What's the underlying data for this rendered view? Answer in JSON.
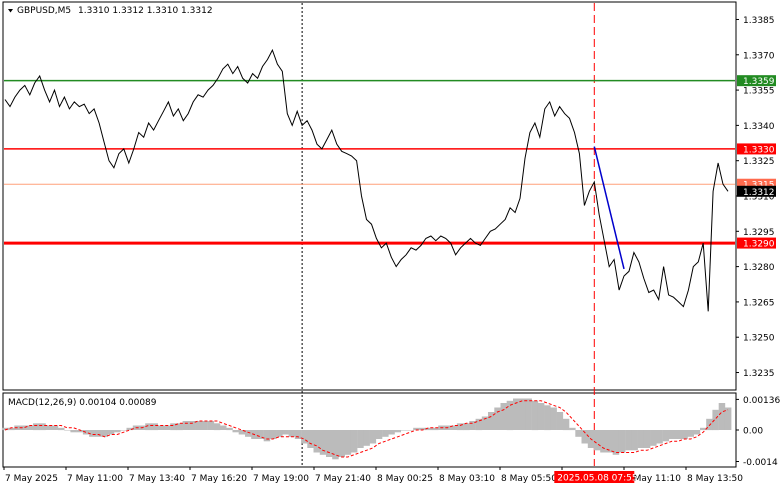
{
  "header": {
    "symbol": "GBPUSD,M5",
    "ohlc": "1.3310 1.3312 1.3310 1.3312"
  },
  "macd": {
    "label": "MACD(12,26,9) 0.00104 0.00089"
  },
  "colors": {
    "price_line": "#000000",
    "resistance": "#228B22",
    "levels": "#FF0000",
    "minor_level": "#FFA07A",
    "trend": "#0000CC",
    "histogram": "#BBBBBB",
    "signal": "#FF0000",
    "current_label_bg": "#000000"
  },
  "chart_data": [
    {
      "type": "line",
      "title": "GBPUSD,M5",
      "ylim": [
        1.3228,
        1.3392
      ],
      "y_ticks": [
        "1.3385",
        "1.3370",
        "1.3355",
        "1.3340",
        "1.3325",
        "1.3310",
        "1.3295",
        "1.3280",
        "1.3265",
        "1.3250",
        "1.3235"
      ],
      "x_ticks": [
        "7 May 2025",
        "7 May 11:00",
        "7 May 13:40",
        "7 May 16:20",
        "7 May 19:00",
        "7 May 21:40",
        "8 May 00:25",
        "8 May 03:10",
        "8 May 05:50",
        "8 May 08:30",
        "8 May 11:10",
        "8 May 13:50"
      ],
      "x_highlight": "2025.05.08 07:55",
      "series": [
        {
          "values": [
            1.3351,
            1.3348,
            1.3352,
            1.3355,
            1.3357,
            1.3353,
            1.3358,
            1.3361,
            1.3355,
            1.335,
            1.3355,
            1.3348,
            1.3352,
            1.3347,
            1.335,
            1.3348,
            1.3349,
            1.3345,
            1.3347,
            1.3341,
            1.3333,
            1.3325,
            1.3322,
            1.3328,
            1.333,
            1.3324,
            1.333,
            1.3337,
            1.3335,
            1.3341,
            1.3338,
            1.3342,
            1.3346,
            1.335,
            1.3344,
            1.3347,
            1.3342,
            1.3345,
            1.335,
            1.3353,
            1.3352,
            1.3355,
            1.3357,
            1.336,
            1.3364,
            1.3366,
            1.3362,
            1.3365,
            1.336,
            1.3358,
            1.3362,
            1.336,
            1.3365,
            1.3368,
            1.3372,
            1.3366,
            1.3363,
            1.3345,
            1.334,
            1.3346,
            1.334,
            1.3342,
            1.3338,
            1.3332,
            1.333,
            1.3334,
            1.3338,
            1.3332,
            1.3329,
            1.3328,
            1.3327,
            1.3325,
            1.331,
            1.33,
            1.3298,
            1.3292,
            1.3288,
            1.329,
            1.3284,
            1.328,
            1.3283,
            1.3285,
            1.3288,
            1.3287,
            1.3289,
            1.3292,
            1.3293,
            1.3291,
            1.3293,
            1.3292,
            1.329,
            1.3285,
            1.3288,
            1.329,
            1.3292,
            1.329,
            1.3289,
            1.3292,
            1.3295,
            1.3296,
            1.3298,
            1.33,
            1.3305,
            1.3303,
            1.3309,
            1.3326,
            1.3337,
            1.3341,
            1.3335,
            1.3347,
            1.335,
            1.3344,
            1.3348,
            1.3345,
            1.3343,
            1.3337,
            1.3328,
            1.3306,
            1.3312,
            1.3316,
            1.3302,
            1.3291,
            1.328,
            1.3283,
            1.327,
            1.3276,
            1.3278,
            1.3286,
            1.3282,
            1.3275,
            1.3269,
            1.327,
            1.3266,
            1.328,
            1.3268,
            1.3267,
            1.3265,
            1.3263,
            1.327,
            1.328,
            1.3282,
            1.329,
            1.3261,
            1.3312,
            1.3324,
            1.3315,
            1.3312
          ]
        }
      ],
      "levels": [
        {
          "label": "1.3359",
          "value": 1.3359
        },
        {
          "label": "1.3330",
          "value": 1.333
        },
        {
          "label": "1.3315",
          "value": 1.3315
        },
        {
          "label": "1.3290",
          "value": 1.329
        }
      ],
      "current_price": "1.3312",
      "trend_line": {
        "from": [
          119,
          1.3331
        ],
        "to": [
          125,
          1.3279
        ]
      },
      "vertical_markers": [
        60,
        119
      ]
    },
    {
      "type": "bar",
      "title": "MACD(12,26,9) 0.00104 0.00089",
      "ylim": [
        -0.0016,
        0.0016
      ],
      "y_ticks": [
        "0.00136",
        "0.00",
        "-0.0014"
      ],
      "series": [
        {
          "name": "MACD",
          "values": [
            0.0001,
            0.0001,
            0.0002,
            0.0002,
            0.0002,
            0.0003,
            0.0003,
            0.0002,
            0.0002,
            0.0001,
            0.0,
            -0.0001,
            -0.0001,
            -0.0002,
            -0.0003,
            -0.0003,
            -0.0003,
            -0.0002,
            -0.0001,
            0.0,
            0.0001,
            0.0002,
            0.0002,
            0.0003,
            0.0003,
            0.0002,
            0.0002,
            0.0003,
            0.0003,
            0.0004,
            0.0004,
            0.0004,
            0.0004,
            0.0004,
            0.0003,
            0.0002,
            0.0001,
            -0.0001,
            -0.0002,
            -0.0003,
            -0.0004,
            -0.0004,
            -0.0005,
            -0.0004,
            -0.0003,
            -0.0002,
            -0.0003,
            -0.0004,
            -0.0006,
            -0.0008,
            -0.001,
            -0.0011,
            -0.0012,
            -0.0013,
            -0.0012,
            -0.0011,
            -0.001,
            -0.0008,
            -0.0007,
            -0.0006,
            -0.0004,
            -0.0003,
            -0.0002,
            -0.0001,
            0.0,
            0.0,
            0.0001,
            0.0001,
            0.0001,
            0.0001,
            0.0002,
            0.0002,
            0.0002,
            0.0003,
            0.0003,
            0.0004,
            0.0005,
            0.0006,
            0.0008,
            0.001,
            0.0012,
            0.0013,
            0.0014,
            0.0014,
            0.0014,
            0.0013,
            0.0012,
            0.0011,
            0.001,
            0.0008,
            0.0005,
            0.0001,
            -0.0003,
            -0.0006,
            -0.0008,
            -0.0009,
            -0.001,
            -0.001,
            -0.0011,
            -0.001,
            -0.0009,
            -0.0009,
            -0.0008,
            -0.0008,
            -0.0007,
            -0.0006,
            -0.0005,
            -0.0004,
            -0.0004,
            -0.0004,
            -0.0003,
            -0.0002,
            0.0001,
            0.0005,
            0.0009,
            0.0012,
            0.001
          ]
        },
        {
          "name": "Signal",
          "values": [
            0.0,
            0.0001,
            0.0001,
            0.0001,
            0.0002,
            0.0002,
            0.0002,
            0.0002,
            0.0002,
            0.0002,
            0.0001,
            0.0001,
            0.0,
            -0.0001,
            -0.0002,
            -0.0002,
            -0.0003,
            -0.0002,
            -0.0002,
            -0.0001,
            0.0,
            0.0001,
            0.0001,
            0.0002,
            0.0002,
            0.0002,
            0.0002,
            0.0002,
            0.0003,
            0.0003,
            0.0003,
            0.0004,
            0.0004,
            0.0004,
            0.0004,
            0.0003,
            0.0002,
            0.0001,
            0.0,
            -0.0001,
            -0.0002,
            -0.0003,
            -0.0004,
            -0.0004,
            -0.0003,
            -0.0003,
            -0.0003,
            -0.0003,
            -0.0004,
            -0.0006,
            -0.0007,
            -0.0009,
            -0.001,
            -0.0011,
            -0.0012,
            -0.0012,
            -0.0011,
            -0.001,
            -0.0009,
            -0.0008,
            -0.0006,
            -0.0005,
            -0.0004,
            -0.0003,
            -0.0002,
            -0.0001,
            0.0,
            0.0,
            0.0001,
            0.0001,
            0.0001,
            0.0001,
            0.0002,
            0.0002,
            0.0003,
            0.0003,
            0.0004,
            0.0005,
            0.0006,
            0.0008,
            0.0009,
            0.0011,
            0.0012,
            0.0013,
            0.0013,
            0.0013,
            0.0013,
            0.0012,
            0.0011,
            0.001,
            0.0008,
            0.0005,
            0.0002,
            -0.0001,
            -0.0004,
            -0.0006,
            -0.0008,
            -0.0009,
            -0.001,
            -0.001,
            -0.001,
            -0.001,
            -0.0009,
            -0.0009,
            -0.0008,
            -0.0007,
            -0.0006,
            -0.0005,
            -0.0005,
            -0.0004,
            -0.0004,
            -0.0003,
            -0.0001,
            0.0002,
            0.0005,
            0.0008,
            0.0009
          ]
        }
      ]
    }
  ]
}
